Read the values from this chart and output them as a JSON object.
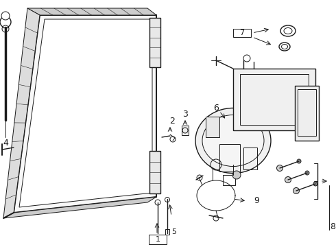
{
  "bg_color": "#ffffff",
  "line_color": "#1a1a1a",
  "label_color": "#1a1a1a",
  "gray_color": "#aaaaaa",
  "mid_gray": "#888888"
}
